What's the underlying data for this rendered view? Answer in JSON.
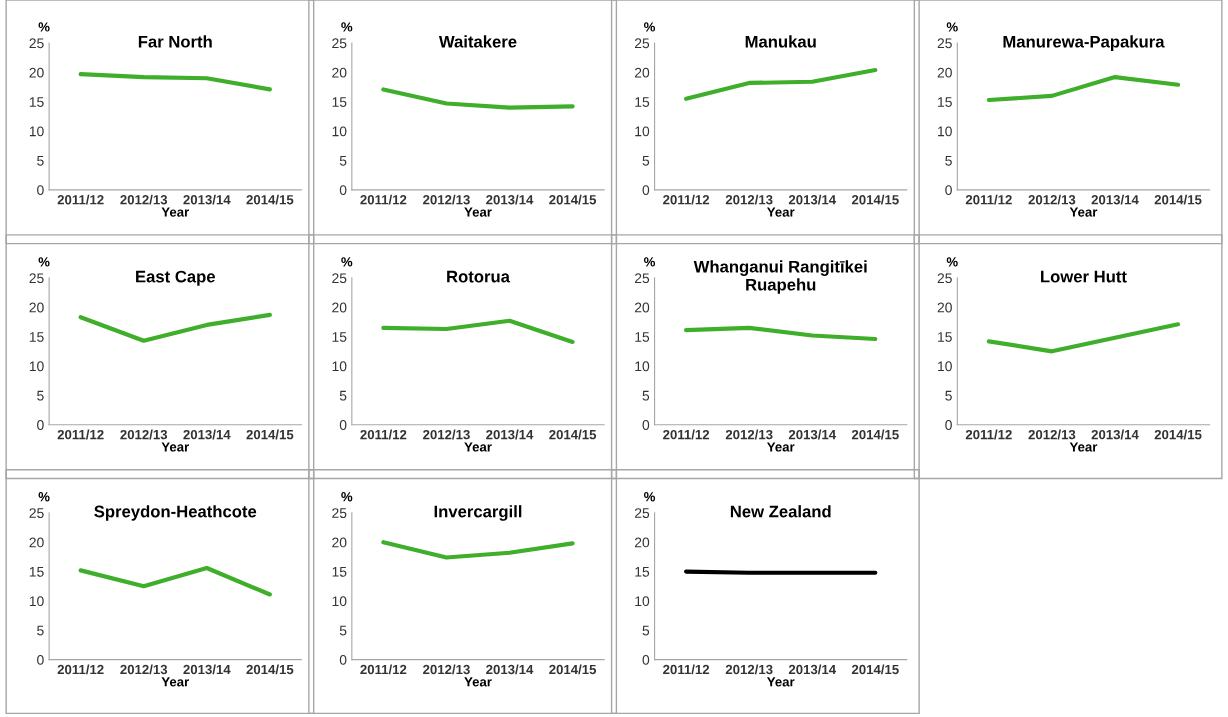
{
  "chart_data": [
    {
      "type": "line",
      "title": "Far North",
      "xlabel": "Year",
      "ylabel": "%",
      "categories": [
        "2011/12",
        "2012/13",
        "2013/14",
        "2014/15"
      ],
      "series": [
        {
          "color": "#3fae2a",
          "values": [
            19.7,
            19.2,
            19.0,
            17.1
          ]
        }
      ],
      "ylim": [
        0,
        25
      ],
      "yticks": [
        0,
        5,
        10,
        15,
        20,
        25
      ],
      "grid": false
    },
    {
      "type": "line",
      "title": "Waitakere",
      "xlabel": "Year",
      "ylabel": "%",
      "categories": [
        "2011/12",
        "2012/13",
        "2013/14",
        "2014/15"
      ],
      "series": [
        {
          "color": "#3fae2a",
          "values": [
            17.1,
            14.7,
            14.0,
            14.2
          ]
        }
      ],
      "ylim": [
        0,
        25
      ],
      "yticks": [
        0,
        5,
        10,
        15,
        20,
        25
      ],
      "grid": false
    },
    {
      "type": "line",
      "title": "Manukau",
      "xlabel": "Year",
      "ylabel": "%",
      "categories": [
        "2011/12",
        "2012/13",
        "2013/14",
        "2014/15"
      ],
      "series": [
        {
          "color": "#3fae2a",
          "values": [
            15.5,
            18.2,
            18.4,
            20.4
          ]
        }
      ],
      "ylim": [
        0,
        25
      ],
      "yticks": [
        0,
        5,
        10,
        15,
        20,
        25
      ],
      "grid": false
    },
    {
      "type": "line",
      "title": "Manurewa-Papakura",
      "xlabel": "Year",
      "ylabel": "%",
      "categories": [
        "2011/12",
        "2012/13",
        "2013/14",
        "2014/15"
      ],
      "series": [
        {
          "color": "#3fae2a",
          "values": [
            15.3,
            16.0,
            19.2,
            17.9
          ]
        }
      ],
      "ylim": [
        0,
        25
      ],
      "yticks": [
        0,
        5,
        10,
        15,
        20,
        25
      ],
      "grid": false
    },
    {
      "type": "line",
      "title": "East Cape",
      "xlabel": "Year",
      "ylabel": "%",
      "categories": [
        "2011/12",
        "2012/13",
        "2013/14",
        "2014/15"
      ],
      "series": [
        {
          "color": "#3fae2a",
          "values": [
            18.3,
            14.3,
            17.0,
            18.7
          ]
        }
      ],
      "ylim": [
        0,
        25
      ],
      "yticks": [
        0,
        5,
        10,
        15,
        20,
        25
      ],
      "grid": false
    },
    {
      "type": "line",
      "title": "Rotorua",
      "xlabel": "Year",
      "ylabel": "%",
      "categories": [
        "2011/12",
        "2012/13",
        "2013/14",
        "2014/15"
      ],
      "series": [
        {
          "color": "#3fae2a",
          "values": [
            16.5,
            16.3,
            17.7,
            14.1
          ]
        }
      ],
      "ylim": [
        0,
        25
      ],
      "yticks": [
        0,
        5,
        10,
        15,
        20,
        25
      ],
      "grid": false
    },
    {
      "type": "line",
      "title": "Whanganui Rangitīkei\nRuapehu",
      "xlabel": "Year",
      "ylabel": "%",
      "categories": [
        "2011/12",
        "2012/13",
        "2013/14",
        "2014/15"
      ],
      "series": [
        {
          "color": "#3fae2a",
          "values": [
            16.1,
            16.5,
            15.2,
            14.6
          ]
        }
      ],
      "ylim": [
        0,
        25
      ],
      "yticks": [
        0,
        5,
        10,
        15,
        20,
        25
      ],
      "grid": false
    },
    {
      "type": "line",
      "title": "Lower Hutt",
      "xlabel": "Year",
      "ylabel": "%",
      "categories": [
        "2011/12",
        "2012/13",
        "2013/14",
        "2014/15"
      ],
      "series": [
        {
          "color": "#3fae2a",
          "values": [
            14.2,
            12.5,
            14.8,
            17.1
          ]
        }
      ],
      "ylim": [
        0,
        25
      ],
      "yticks": [
        0,
        5,
        10,
        15,
        20,
        25
      ],
      "grid": false
    },
    {
      "type": "line",
      "title": "Spreydon-Heathcote",
      "xlabel": "Year",
      "ylabel": "%",
      "categories": [
        "2011/12",
        "2012/13",
        "2013/14",
        "2014/15"
      ],
      "series": [
        {
          "color": "#3fae2a",
          "values": [
            15.2,
            12.5,
            15.6,
            11.1
          ]
        }
      ],
      "ylim": [
        0,
        25
      ],
      "yticks": [
        0,
        5,
        10,
        15,
        20,
        25
      ],
      "grid": false
    },
    {
      "type": "line",
      "title": "Invercargill",
      "xlabel": "Year",
      "ylabel": "%",
      "categories": [
        "2011/12",
        "2012/13",
        "2013/14",
        "2014/15"
      ],
      "series": [
        {
          "color": "#3fae2a",
          "values": [
            20.0,
            17.4,
            18.2,
            19.8
          ]
        }
      ],
      "ylim": [
        0,
        25
      ],
      "yticks": [
        0,
        5,
        10,
        15,
        20,
        25
      ],
      "grid": false
    },
    {
      "type": "line",
      "title": "New Zealand",
      "xlabel": "Year",
      "ylabel": "%",
      "categories": [
        "2011/12",
        "2012/13",
        "2013/14",
        "2014/15"
      ],
      "series": [
        {
          "color": "#000000",
          "values": [
            15.0,
            14.8,
            14.8,
            14.8
          ]
        }
      ],
      "ylim": [
        0,
        25
      ],
      "yticks": [
        0,
        5,
        10,
        15,
        20,
        25
      ],
      "grid": false
    }
  ]
}
